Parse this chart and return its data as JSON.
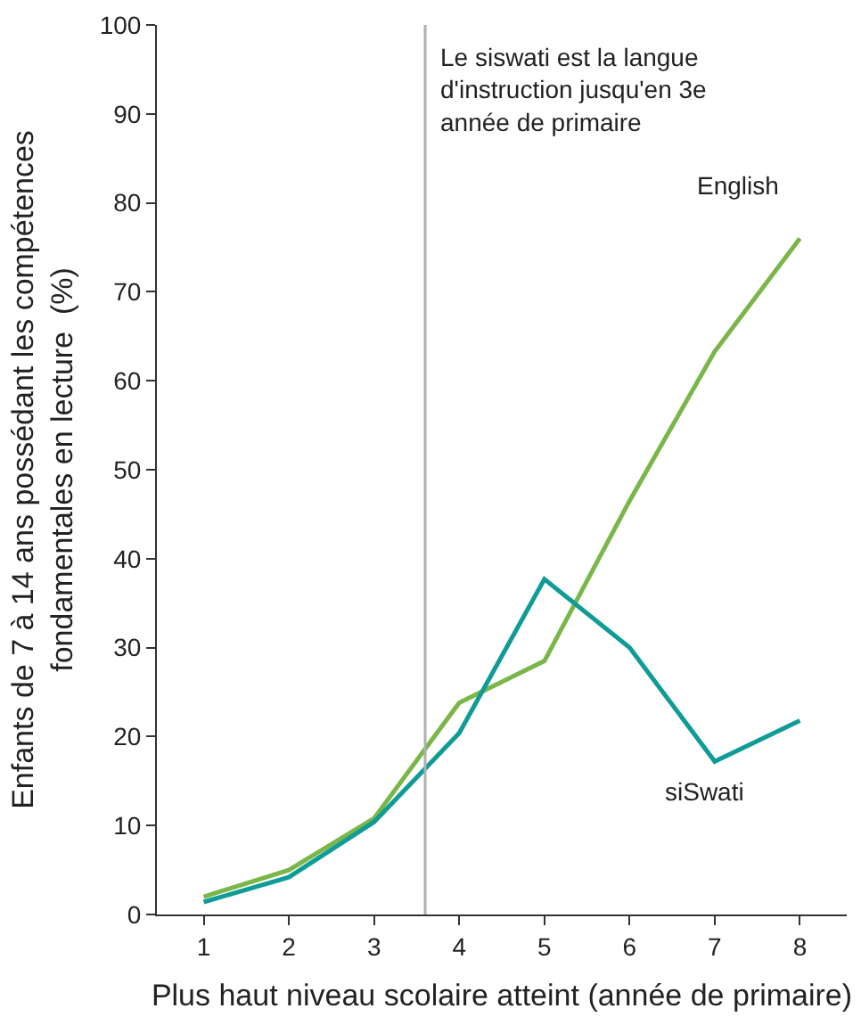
{
  "chart_data": {
    "type": "line",
    "x": [
      1,
      2,
      3,
      4,
      5,
      6,
      7,
      8
    ],
    "xlabel": "Plus haut niveau scolaire atteint (année de primaire)",
    "ylabel": "Enfants de 7 à 14 ans possédant les compétences fondamentales en lecture  (%)",
    "series": [
      {
        "name": "English",
        "color": "#7ab648",
        "values": [
          2,
          5,
          10.8,
          23.8,
          28.5,
          46.5,
          63.3,
          76
        ]
      },
      {
        "name": "siSwati",
        "color": "#0f9b96",
        "values": [
          1.4,
          4.2,
          10.4,
          20.4,
          37.7,
          30,
          17.2,
          21.8
        ]
      }
    ],
    "xlim": [
      0.45,
      8.55
    ],
    "xticks": [
      1,
      2,
      3,
      4,
      5,
      6,
      7,
      8
    ],
    "ylim": [
      0,
      100
    ],
    "yticks": [
      0,
      10,
      20,
      30,
      40,
      50,
      60,
      70,
      80,
      90,
      100
    ],
    "ref_lines": [
      {
        "axis": "x",
        "value": 3.6,
        "label": "Le siswati est la langue d'instruction jusqu'en 3e année de primaire",
        "color": "#b0b0b0"
      }
    ],
    "grid": false,
    "legend": false,
    "marker": "none",
    "line_style": "solid"
  }
}
